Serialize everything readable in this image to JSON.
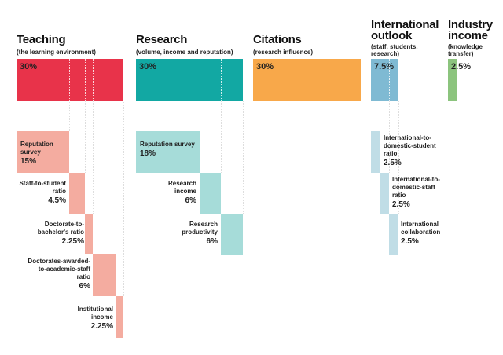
{
  "colors": {
    "teaching": "#e8334a",
    "teaching_light": "#f4aca0",
    "research": "#12a8a3",
    "research_light": "#a6dcd9",
    "citations": "#f8a84a",
    "international": "#7fbad3",
    "international_light": "#c0dde6",
    "industry": "#8cc47e"
  },
  "teaching": {
    "title": "Teaching",
    "subtitle": "(the learning environment)",
    "value": "30%",
    "items": [
      {
        "label": "Reputation survey",
        "value": "15%"
      },
      {
        "label": "Staff-to-student ratio",
        "value": "4.5%"
      },
      {
        "label": "Doctorate-to-bachelor's ratio",
        "value": "2.25%"
      },
      {
        "label": "Doctorates-awarded-to-academic-staff ratio",
        "value": "6%"
      },
      {
        "label": "Institutional income",
        "value": "2.25%"
      }
    ]
  },
  "research": {
    "title": "Research",
    "subtitle": "(volume, income and reputation)",
    "value": "30%",
    "items": [
      {
        "label": "Reputation survey",
        "value": "18%"
      },
      {
        "label": "Research income",
        "value": "6%"
      },
      {
        "label": "Research productivity",
        "value": "6%"
      }
    ]
  },
  "citations": {
    "title": "Citations",
    "subtitle": "(research influence)",
    "value": "30%"
  },
  "international": {
    "title": "International outlook",
    "subtitle": "(staff, students, research)",
    "value": "7.5%",
    "items": [
      {
        "label": "International-to-domestic-student ratio",
        "value": "2.5%"
      },
      {
        "label": "International-to-domestic-staff ratio",
        "value": "2.5%"
      },
      {
        "label": "International collaboration",
        "value": "2.5%"
      }
    ]
  },
  "industry": {
    "title": "Industry income",
    "subtitle": "(knowledge transfer)",
    "value": "2.5%"
  }
}
